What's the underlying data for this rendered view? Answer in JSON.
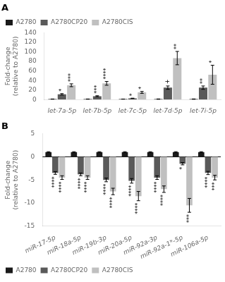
{
  "chart_data": [
    {
      "type": "bar",
      "title": "A",
      "categories": [
        "let-7a-5p",
        "let-7b-5p",
        "let-7c-5p",
        "let-7d-5p",
        "let-7i-5p"
      ],
      "ylabel": "Fold-change\n(relative to A2780)",
      "ylim": [
        0,
        140
      ],
      "yticks": [
        0,
        20,
        40,
        60,
        80,
        100,
        120,
        140
      ],
      "grid": false,
      "legend": "upper left",
      "series": [
        {
          "name": "A2780",
          "color": "#1a1a1a",
          "values": [
            1,
            1,
            1,
            1,
            1
          ],
          "errors": [
            0.2,
            0.2,
            0.1,
            0.3,
            0.3
          ]
        },
        {
          "name": "A2780CP20",
          "color": "#5a5a5a",
          "values": [
            11,
            7,
            2.5,
            25,
            25
          ],
          "errors": [
            1.5,
            1.0,
            0.4,
            3.5,
            3.5
          ],
          "annotations": [
            "*",
            "***",
            "*",
            "+",
            "**"
          ]
        },
        {
          "name": "A2780CIS",
          "color": "#c0c0c0",
          "values": [
            30,
            34,
            15,
            87,
            52
          ],
          "errors": [
            3,
            4,
            2,
            14,
            20
          ],
          "annotations": [
            "***",
            "****",
            "*",
            "**",
            "*"
          ]
        }
      ]
    },
    {
      "type": "bar",
      "title": "B",
      "categories": [
        "miR-17-5p",
        "miR-18a-5p",
        "miR-19b-3p",
        "miR-20a-5p",
        "miR-92a-3p",
        "miR-92a-1*-5p",
        "miR-106a-5p"
      ],
      "ylabel": "Fold-change\n(relative to A2780)",
      "ylim": [
        -15,
        5
      ],
      "yticks": [
        -15,
        -10,
        -5,
        0,
        5
      ],
      "grid": false,
      "legend": "lower left",
      "series": [
        {
          "name": "A2780",
          "color": "#1a1a1a",
          "values": [
            1,
            1,
            1,
            1,
            1,
            1,
            1
          ],
          "errors": [
            0.1,
            0.1,
            0.1,
            0.1,
            0.1,
            0.1,
            0.1
          ]
        },
        {
          "name": "A2780CP20",
          "color": "#5a5a5a",
          "values": [
            -3.5,
            -3.8,
            -5.0,
            -5.2,
            -4.5,
            -1.5,
            -3.5
          ],
          "errors": [
            0.3,
            0.3,
            0.4,
            0.5,
            0.4,
            0.25,
            0.35
          ],
          "annotations": [
            "****",
            "****",
            "****",
            "****",
            "****",
            "*",
            "****"
          ]
        },
        {
          "name": "A2780CIS",
          "color": "#c0c0c0",
          "values": [
            -4.5,
            -4.5,
            -7.5,
            -8.5,
            -7.0,
            -10.5,
            -4.5
          ],
          "errors": [
            0.4,
            0.4,
            0.7,
            1.0,
            0.7,
            1.5,
            0.5
          ],
          "annotations": [
            "****",
            "****",
            "****",
            "****",
            "****",
            "***",
            "***"
          ]
        }
      ]
    }
  ]
}
